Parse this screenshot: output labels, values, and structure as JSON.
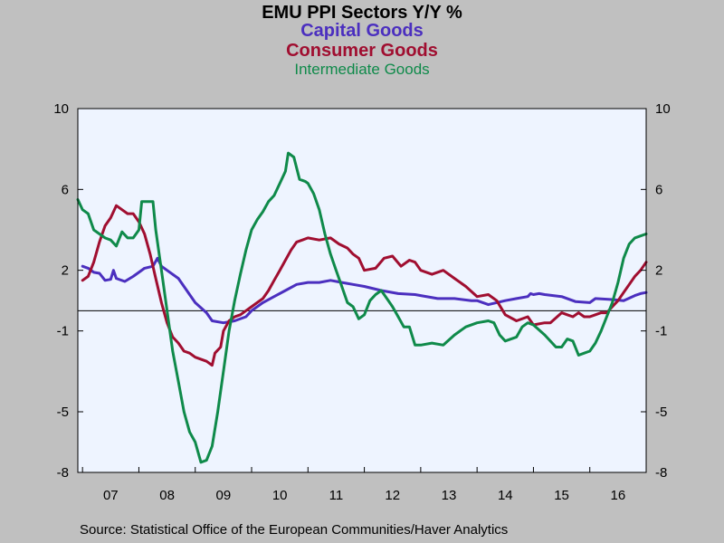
{
  "title": "EMU PPI Sectors Y/Y %",
  "source": "Source:  Statistical Office of the European Communities/Haver Analytics",
  "chart_data": {
    "type": "line",
    "title": "EMU PPI Sectors Y/Y %",
    "xlabel": "",
    "ylabel": "",
    "x_tick_labels": [
      "07",
      "08",
      "09",
      "10",
      "11",
      "12",
      "13",
      "14",
      "15",
      "16"
    ],
    "y_ticks": [
      10,
      6,
      2,
      -1,
      -5,
      -8
    ],
    "ylim": [
      -8,
      10
    ],
    "x_range": [
      2006.917,
      2017.0
    ],
    "grid": false,
    "zero_line": true,
    "axes": "left and right",
    "plot_background": "#eef4ff",
    "series": [
      {
        "name": "Capital Goods",
        "color": "#4b2fbf",
        "points": [
          [
            2007.0,
            2.2
          ],
          [
            2007.1,
            2.1
          ],
          [
            2007.2,
            1.9
          ],
          [
            2007.3,
            1.85
          ],
          [
            2007.4,
            1.5
          ],
          [
            2007.5,
            1.55
          ],
          [
            2007.55,
            2.0
          ],
          [
            2007.6,
            1.6
          ],
          [
            2007.75,
            1.45
          ],
          [
            2007.9,
            1.7
          ],
          [
            2008.0,
            1.9
          ],
          [
            2008.1,
            2.1
          ],
          [
            2008.25,
            2.2
          ],
          [
            2008.33,
            2.6
          ],
          [
            2008.4,
            2.2
          ],
          [
            2008.5,
            2.0
          ],
          [
            2008.7,
            1.6
          ],
          [
            2008.85,
            1.0
          ],
          [
            2009.0,
            0.4
          ],
          [
            2009.2,
            -0.1
          ],
          [
            2009.3,
            -0.5
          ],
          [
            2009.5,
            -0.6
          ],
          [
            2009.7,
            -0.5
          ],
          [
            2009.9,
            -0.3
          ],
          [
            2010.0,
            0.0
          ],
          [
            2010.2,
            0.4
          ],
          [
            2010.4,
            0.7
          ],
          [
            2010.6,
            1.0
          ],
          [
            2010.8,
            1.3
          ],
          [
            2011.0,
            1.4
          ],
          [
            2011.2,
            1.4
          ],
          [
            2011.4,
            1.5
          ],
          [
            2011.6,
            1.4
          ],
          [
            2011.8,
            1.3
          ],
          [
            2012.0,
            1.2
          ],
          [
            2012.3,
            1.0
          ],
          [
            2012.6,
            0.85
          ],
          [
            2012.9,
            0.8
          ],
          [
            2013.0,
            0.75
          ],
          [
            2013.3,
            0.6
          ],
          [
            2013.6,
            0.6
          ],
          [
            2013.9,
            0.5
          ],
          [
            2014.0,
            0.5
          ],
          [
            2014.2,
            0.3
          ],
          [
            2014.5,
            0.5
          ],
          [
            2014.7,
            0.6
          ],
          [
            2014.9,
            0.7
          ],
          [
            2014.95,
            0.85
          ],
          [
            2015.0,
            0.8
          ],
          [
            2015.1,
            0.85
          ],
          [
            2015.2,
            0.8
          ],
          [
            2015.5,
            0.7
          ],
          [
            2015.75,
            0.45
          ],
          [
            2016.0,
            0.4
          ],
          [
            2016.1,
            0.6
          ],
          [
            2016.4,
            0.55
          ],
          [
            2016.6,
            0.5
          ],
          [
            2016.8,
            0.75
          ],
          [
            2016.9,
            0.85
          ],
          [
            2017.0,
            0.9
          ]
        ]
      },
      {
        "name": "Consumer Goods",
        "color": "#a00e30",
        "points": [
          [
            2007.0,
            1.5
          ],
          [
            2007.1,
            1.7
          ],
          [
            2007.2,
            2.4
          ],
          [
            2007.3,
            3.4
          ],
          [
            2007.4,
            4.2
          ],
          [
            2007.5,
            4.6
          ],
          [
            2007.6,
            5.2
          ],
          [
            2007.7,
            5.0
          ],
          [
            2007.8,
            4.8
          ],
          [
            2007.9,
            4.8
          ],
          [
            2008.0,
            4.4
          ],
          [
            2008.1,
            3.8
          ],
          [
            2008.2,
            2.8
          ],
          [
            2008.3,
            1.6
          ],
          [
            2008.4,
            0.4
          ],
          [
            2008.5,
            -0.6
          ],
          [
            2008.6,
            -1.3
          ],
          [
            2008.7,
            -1.6
          ],
          [
            2008.8,
            -2.0
          ],
          [
            2008.9,
            -2.1
          ],
          [
            2009.0,
            -2.3
          ],
          [
            2009.2,
            -2.5
          ],
          [
            2009.3,
            -2.7
          ],
          [
            2009.35,
            -2.1
          ],
          [
            2009.45,
            -1.8
          ],
          [
            2009.5,
            -1.0
          ],
          [
            2009.6,
            -0.5
          ],
          [
            2009.7,
            -0.3
          ],
          [
            2009.8,
            -0.2
          ],
          [
            2009.9,
            0.0
          ],
          [
            2010.0,
            0.2
          ],
          [
            2010.1,
            0.4
          ],
          [
            2010.2,
            0.6
          ],
          [
            2010.3,
            1.0
          ],
          [
            2010.4,
            1.5
          ],
          [
            2010.5,
            2.0
          ],
          [
            2010.6,
            2.5
          ],
          [
            2010.7,
            3.0
          ],
          [
            2010.8,
            3.4
          ],
          [
            2010.9,
            3.5
          ],
          [
            2011.0,
            3.6
          ],
          [
            2011.2,
            3.5
          ],
          [
            2011.4,
            3.6
          ],
          [
            2011.55,
            3.3
          ],
          [
            2011.7,
            3.1
          ],
          [
            2011.8,
            2.8
          ],
          [
            2011.9,
            2.6
          ],
          [
            2012.0,
            2.0
          ],
          [
            2012.2,
            2.1
          ],
          [
            2012.35,
            2.6
          ],
          [
            2012.5,
            2.7
          ],
          [
            2012.65,
            2.2
          ],
          [
            2012.8,
            2.5
          ],
          [
            2012.9,
            2.4
          ],
          [
            2013.0,
            2.0
          ],
          [
            2013.2,
            1.8
          ],
          [
            2013.4,
            2.0
          ],
          [
            2013.6,
            1.6
          ],
          [
            2013.8,
            1.2
          ],
          [
            2014.0,
            0.7
          ],
          [
            2014.2,
            0.8
          ],
          [
            2014.35,
            0.5
          ],
          [
            2014.5,
            -0.2
          ],
          [
            2014.7,
            -0.5
          ],
          [
            2014.9,
            -0.3
          ],
          [
            2015.0,
            -0.7
          ],
          [
            2015.2,
            -0.6
          ],
          [
            2015.3,
            -0.6
          ],
          [
            2015.5,
            -0.1
          ],
          [
            2015.6,
            -0.2
          ],
          [
            2015.7,
            -0.3
          ],
          [
            2015.8,
            -0.1
          ],
          [
            2015.9,
            -0.3
          ],
          [
            2016.0,
            -0.3
          ],
          [
            2016.1,
            -0.2
          ],
          [
            2016.2,
            -0.1
          ],
          [
            2016.3,
            -0.1
          ],
          [
            2016.4,
            0.2
          ],
          [
            2016.5,
            0.5
          ],
          [
            2016.6,
            0.9
          ],
          [
            2016.7,
            1.3
          ],
          [
            2016.8,
            1.7
          ],
          [
            2016.9,
            2.0
          ],
          [
            2017.0,
            2.4
          ]
        ]
      },
      {
        "name": "Intermediate Goods",
        "color": "#0f8a4a",
        "points": [
          [
            2006.917,
            5.5
          ],
          [
            2007.0,
            5.0
          ],
          [
            2007.1,
            4.8
          ],
          [
            2007.2,
            4.0
          ],
          [
            2007.3,
            3.8
          ],
          [
            2007.4,
            3.6
          ],
          [
            2007.5,
            3.5
          ],
          [
            2007.6,
            3.2
          ],
          [
            2007.7,
            3.9
          ],
          [
            2007.8,
            3.6
          ],
          [
            2007.9,
            3.6
          ],
          [
            2008.0,
            4.0
          ],
          [
            2008.05,
            5.4
          ],
          [
            2008.25,
            5.4
          ],
          [
            2008.3,
            4.0
          ],
          [
            2008.4,
            2.0
          ],
          [
            2008.5,
            0.0
          ],
          [
            2008.6,
            -2.0
          ],
          [
            2008.7,
            -3.5
          ],
          [
            2008.8,
            -5.0
          ],
          [
            2008.9,
            -6.0
          ],
          [
            2009.0,
            -6.5
          ],
          [
            2009.1,
            -7.5
          ],
          [
            2009.2,
            -7.4
          ],
          [
            2009.3,
            -6.7
          ],
          [
            2009.4,
            -5.0
          ],
          [
            2009.5,
            -3.0
          ],
          [
            2009.6,
            -1.0
          ],
          [
            2009.7,
            0.5
          ],
          [
            2009.8,
            1.8
          ],
          [
            2009.9,
            3.0
          ],
          [
            2010.0,
            4.0
          ],
          [
            2010.1,
            4.5
          ],
          [
            2010.2,
            4.9
          ],
          [
            2010.3,
            5.4
          ],
          [
            2010.4,
            5.7
          ],
          [
            2010.5,
            6.3
          ],
          [
            2010.6,
            6.9
          ],
          [
            2010.65,
            7.8
          ],
          [
            2010.75,
            7.6
          ],
          [
            2010.85,
            6.5
          ],
          [
            2010.95,
            6.4
          ],
          [
            2011.0,
            6.3
          ],
          [
            2011.1,
            5.8
          ],
          [
            2011.2,
            5.0
          ],
          [
            2011.3,
            3.8
          ],
          [
            2011.4,
            2.8
          ],
          [
            2011.5,
            2.0
          ],
          [
            2011.6,
            1.2
          ],
          [
            2011.7,
            0.4
          ],
          [
            2011.8,
            0.2
          ],
          [
            2011.9,
            -0.4
          ],
          [
            2012.0,
            -0.2
          ],
          [
            2012.1,
            0.5
          ],
          [
            2012.2,
            0.8
          ],
          [
            2012.3,
            1.0
          ],
          [
            2012.4,
            0.6
          ],
          [
            2012.5,
            0.2
          ],
          [
            2012.6,
            -0.3
          ],
          [
            2012.7,
            -0.8
          ],
          [
            2012.8,
            -0.8
          ],
          [
            2012.9,
            -1.7
          ],
          [
            2013.0,
            -1.7
          ],
          [
            2013.2,
            -1.6
          ],
          [
            2013.4,
            -1.7
          ],
          [
            2013.6,
            -1.2
          ],
          [
            2013.8,
            -0.8
          ],
          [
            2014.0,
            -0.6
          ],
          [
            2014.2,
            -0.5
          ],
          [
            2014.3,
            -0.6
          ],
          [
            2014.4,
            -1.2
          ],
          [
            2014.5,
            -1.5
          ],
          [
            2014.7,
            -1.3
          ],
          [
            2014.8,
            -0.8
          ],
          [
            2014.9,
            -0.6
          ],
          [
            2015.0,
            -0.7
          ],
          [
            2015.2,
            -1.2
          ],
          [
            2015.4,
            -1.8
          ],
          [
            2015.5,
            -1.8
          ],
          [
            2015.6,
            -1.4
          ],
          [
            2015.7,
            -1.5
          ],
          [
            2015.8,
            -2.2
          ],
          [
            2015.9,
            -2.1
          ],
          [
            2016.0,
            -2.0
          ],
          [
            2016.1,
            -1.6
          ],
          [
            2016.2,
            -1.0
          ],
          [
            2016.3,
            -0.3
          ],
          [
            2016.4,
            0.4
          ],
          [
            2016.5,
            1.4
          ],
          [
            2016.6,
            2.6
          ],
          [
            2016.7,
            3.3
          ],
          [
            2016.8,
            3.6
          ],
          [
            2016.9,
            3.7
          ],
          [
            2017.0,
            3.8
          ]
        ]
      }
    ]
  }
}
